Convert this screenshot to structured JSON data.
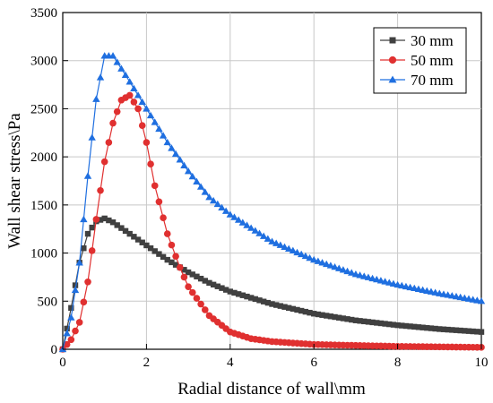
{
  "chart_data": {
    "type": "line",
    "xlabel": "Radial distance of wall\\mm",
    "ylabel": "Wall shear stress\\Pa",
    "xlim": [
      0,
      10
    ],
    "ylim": [
      0,
      3500
    ],
    "xticks": [
      0,
      2,
      4,
      6,
      8,
      10
    ],
    "yticks": [
      0,
      500,
      1000,
      1500,
      2000,
      2500,
      3000,
      3500
    ],
    "grid": true,
    "legend_position": "top-right",
    "series": [
      {
        "name": "30 mm",
        "color": "#404040",
        "marker": "square",
        "x": [
          0,
          0.2,
          0.4,
          0.6,
          0.8,
          1.0,
          1.2,
          1.5,
          2.0,
          2.5,
          3.0,
          3.5,
          4.0,
          5.0,
          6.0,
          7.0,
          8.0,
          9.0,
          10.0
        ],
        "y": [
          0,
          430,
          900,
          1200,
          1330,
          1360,
          1320,
          1230,
          1080,
          930,
          800,
          690,
          600,
          470,
          370,
          300,
          250,
          210,
          180
        ]
      },
      {
        "name": "50 mm",
        "color": "#e03030",
        "marker": "circle",
        "x": [
          0,
          0.2,
          0.4,
          0.6,
          0.8,
          1.0,
          1.2,
          1.4,
          1.6,
          1.8,
          2.0,
          2.2,
          2.5,
          2.8,
          3.0,
          3.5,
          4.0,
          4.5,
          5.0,
          6.0,
          7.0,
          8.0,
          9.0,
          10.0
        ],
        "y": [
          0,
          100,
          280,
          700,
          1350,
          1950,
          2350,
          2590,
          2640,
          2500,
          2150,
          1700,
          1200,
          850,
          650,
          350,
          180,
          110,
          80,
          50,
          40,
          30,
          25,
          20
        ]
      },
      {
        "name": "70 mm",
        "color": "#1f6fe0",
        "marker": "triangle",
        "x": [
          0,
          0.2,
          0.4,
          0.6,
          0.8,
          1.0,
          1.2,
          1.5,
          2.0,
          2.5,
          3.0,
          3.5,
          4.0,
          5.0,
          6.0,
          7.0,
          8.0,
          9.0,
          10.0
        ],
        "y": [
          0,
          330,
          900,
          1800,
          2600,
          3050,
          3050,
          2850,
          2500,
          2150,
          1850,
          1580,
          1400,
          1120,
          930,
          780,
          670,
          580,
          500
        ]
      }
    ]
  }
}
